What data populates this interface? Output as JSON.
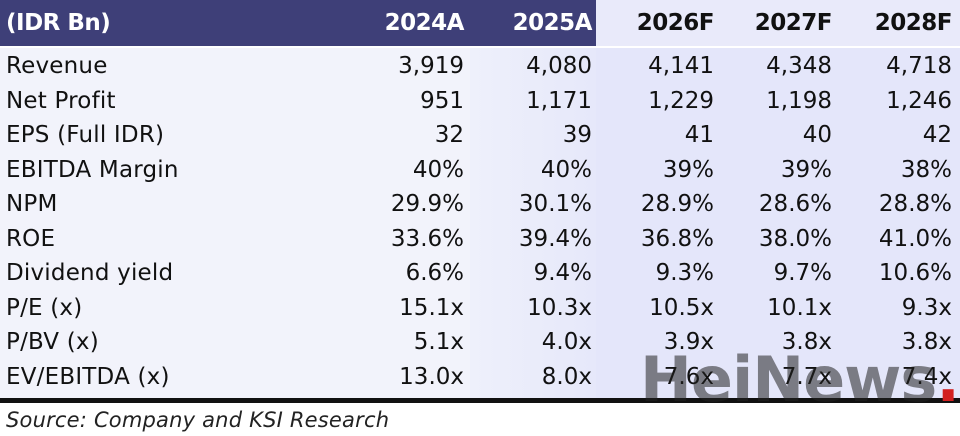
{
  "header": {
    "label": "(IDR Bn)",
    "years": [
      {
        "label": "2024A",
        "kind": "actual"
      },
      {
        "label": "2025A",
        "kind": "actual"
      },
      {
        "label": "2026F",
        "kind": "forecast"
      },
      {
        "label": "2027F",
        "kind": "forecast"
      },
      {
        "label": "2028F",
        "kind": "forecast"
      }
    ]
  },
  "rows": [
    {
      "label": "Revenue",
      "values": [
        "3,919",
        "4,080",
        "4,141",
        "4,348",
        "4,718"
      ]
    },
    {
      "label": "Net Profit",
      "values": [
        "951",
        "1,171",
        "1,229",
        "1,198",
        "1,246"
      ]
    },
    {
      "label": "EPS (Full IDR)",
      "values": [
        "32",
        "39",
        "41",
        "40",
        "42"
      ]
    },
    {
      "label": "EBITDA Margin",
      "values": [
        "40%",
        "40%",
        "39%",
        "39%",
        "38%"
      ]
    },
    {
      "label": "NPM",
      "values": [
        "29.9%",
        "30.1%",
        "28.9%",
        "28.6%",
        "28.8%"
      ]
    },
    {
      "label": "ROE",
      "values": [
        "33.6%",
        "39.4%",
        "36.8%",
        "38.0%",
        "41.0%"
      ]
    },
    {
      "label": "Dividend yield",
      "values": [
        "6.6%",
        "9.4%",
        "9.3%",
        "9.7%",
        "10.6%"
      ]
    },
    {
      "label": "P/E (x)",
      "values": [
        "15.1x",
        "10.3x",
        "10.5x",
        "10.1x",
        "9.3x"
      ]
    },
    {
      "label": "P/BV (x)",
      "values": [
        "5.1x",
        "4.0x",
        "3.9x",
        "3.8x",
        "3.8x"
      ]
    },
    {
      "label": "EV/EBITDA (x)",
      "values": [
        "13.0x",
        "8.0x",
        "7.6x",
        "7.7x",
        "7.4x"
      ]
    }
  ],
  "source": "Source: Company and KSI Research",
  "watermark": {
    "text": "HeiNews",
    "dot": "."
  },
  "colors": {
    "header_actual_bg": "#3e3f78",
    "header_forecast_bg": "#e9eafa",
    "forecast_band": "#e4e6fa",
    "watermark_dot": "#d22020"
  }
}
